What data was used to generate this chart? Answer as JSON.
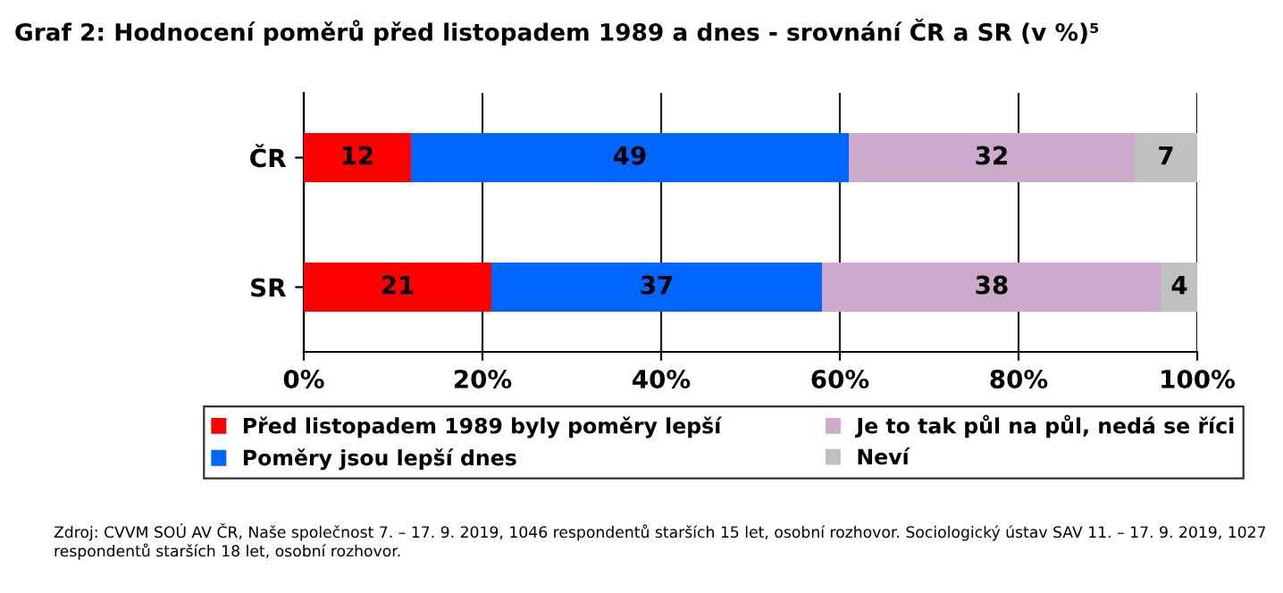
{
  "chart_data": {
    "type": "bar",
    "orientation": "horizontal",
    "stacked": true,
    "title": "Graf 2: Hodnocení poměrů před listopadem 1989 a dnes - srovnání ČR a SR (v %)⁵",
    "categories": [
      "ČR",
      "SR"
    ],
    "series": [
      {
        "name": "Před listopadem 1989 byly poměry lepší",
        "color": "#ff0000",
        "values": [
          12,
          21
        ]
      },
      {
        "name": "Poměry jsou lepší dnes",
        "color": "#0066ff",
        "values": [
          49,
          37
        ]
      },
      {
        "name": "Je to tak půl na půl, nedá se říci",
        "color": "#ccaacc",
        "values": [
          32,
          38
        ]
      },
      {
        "name": "Neví",
        "color": "#c0c0c0",
        "values": [
          7,
          4
        ]
      }
    ],
    "xlim": [
      0,
      100
    ],
    "xticks": [
      {
        "value": 0,
        "label": "0%"
      },
      {
        "value": 20,
        "label": "20%"
      },
      {
        "value": 40,
        "label": "40%"
      },
      {
        "value": 60,
        "label": "60%"
      },
      {
        "value": 80,
        "label": "80%"
      },
      {
        "value": 100,
        "label": "100%"
      }
    ],
    "grid": "x",
    "legend": "bottom",
    "data_labels": true,
    "annotations": [
      "Zdroj: CVVM SOÚ AV ČR, Naše společnost 7. – 17. 9. 2019, 1046 respondentů starších 15 let, osobní rozhovor. Sociologický ústav SAV 11. – 17. 9. 2019, 1027 respondentů starších 18 let, osobní rozhovor."
    ]
  }
}
